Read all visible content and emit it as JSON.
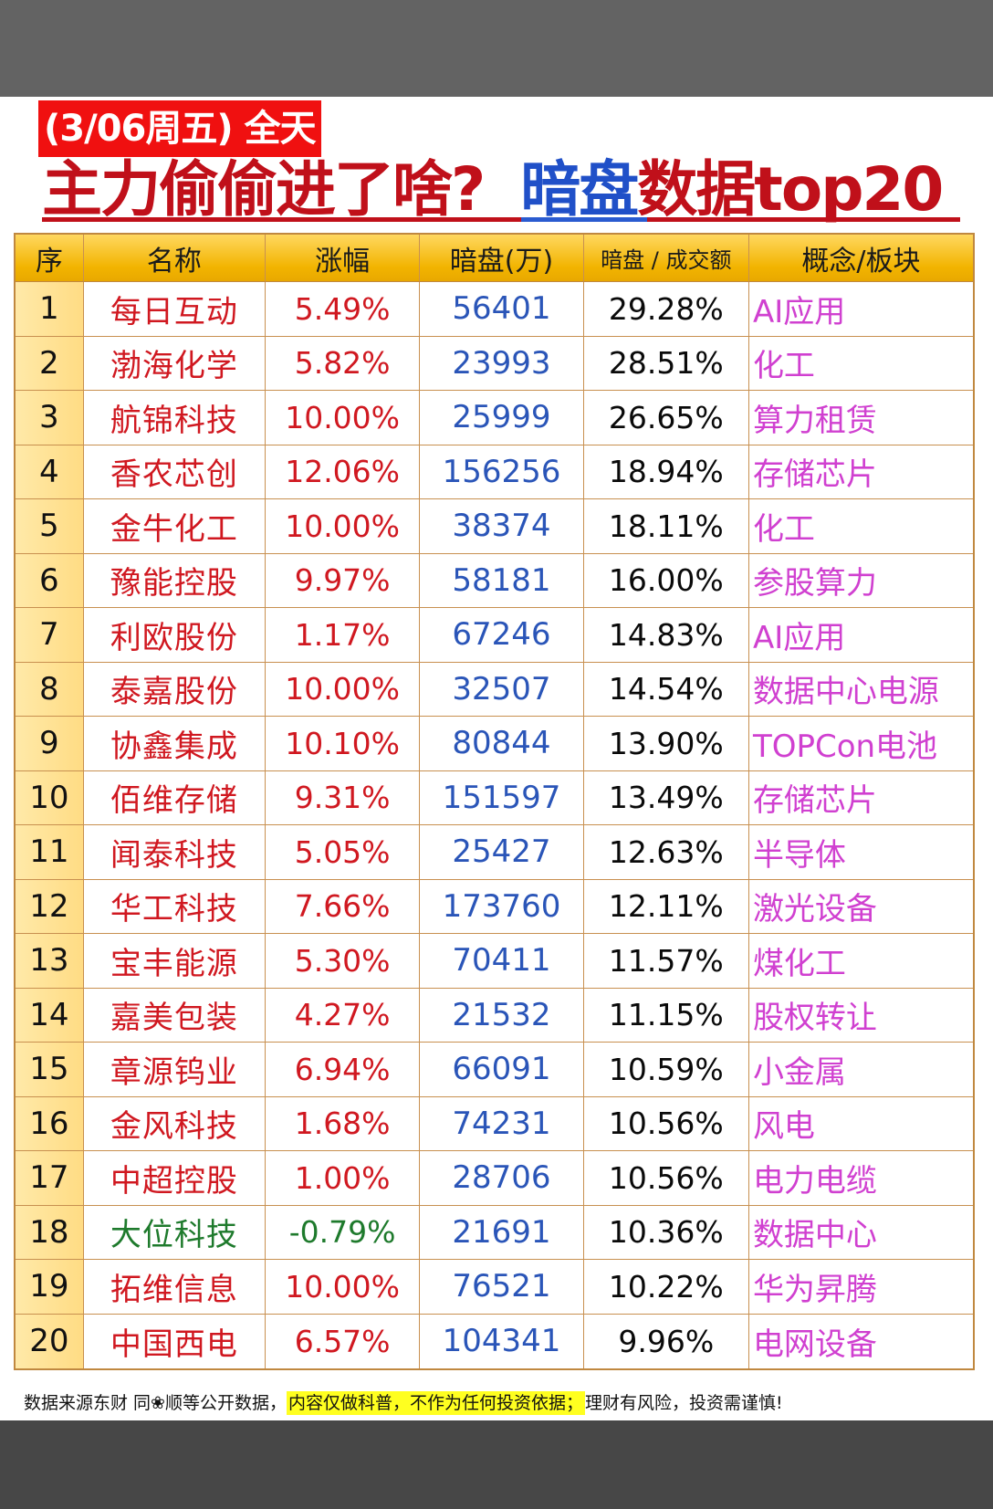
{
  "header": {
    "date_tag": "(3/06周五) 全天",
    "title_part1": "主力偷偷进了啥?",
    "title_part2_blue": "暗盘",
    "title_part3": "数据top20"
  },
  "colors": {
    "date_tag_bg": "#f01010",
    "title_red": "#c0101a",
    "title_blue": "#2050c8",
    "header_gold": "#f2b400",
    "index_col_bg": "#ffe4a0",
    "name_red": "#d01820",
    "name_green": "#1e7a2c",
    "dark_pool_blue": "#2a55b8",
    "concept_magenta": "#d040d0",
    "highlight_yellow": "#ffff20",
    "page_bg_dark": "#4a4a4a"
  },
  "table": {
    "columns": [
      "序",
      "名称",
      "涨幅",
      "暗盘(万)",
      "暗盘 / 成交额",
      "概念/板块"
    ],
    "rows": [
      {
        "idx": "1",
        "name": "每日互动",
        "change": "5.49%",
        "dark": "56401",
        "ratio": "29.28%",
        "concept": "AI应用"
      },
      {
        "idx": "2",
        "name": "渤海化学",
        "change": "5.82%",
        "dark": "23993",
        "ratio": "28.51%",
        "concept": "化工"
      },
      {
        "idx": "3",
        "name": "航锦科技",
        "change": "10.00%",
        "dark": "25999",
        "ratio": "26.65%",
        "concept": "算力租赁"
      },
      {
        "idx": "4",
        "name": "香农芯创",
        "change": "12.06%",
        "dark": "156256",
        "ratio": "18.94%",
        "concept": "存储芯片"
      },
      {
        "idx": "5",
        "name": "金牛化工",
        "change": "10.00%",
        "dark": "38374",
        "ratio": "18.11%",
        "concept": "化工"
      },
      {
        "idx": "6",
        "name": "豫能控股",
        "change": "9.97%",
        "dark": "58181",
        "ratio": "16.00%",
        "concept": "参股算力"
      },
      {
        "idx": "7",
        "name": "利欧股份",
        "change": "1.17%",
        "dark": "67246",
        "ratio": "14.83%",
        "concept": "AI应用"
      },
      {
        "idx": "8",
        "name": "泰嘉股份",
        "change": "10.00%",
        "dark": "32507",
        "ratio": "14.54%",
        "concept": "数据中心电源"
      },
      {
        "idx": "9",
        "name": "协鑫集成",
        "change": "10.10%",
        "dark": "80844",
        "ratio": "13.90%",
        "concept": "TOPCon电池"
      },
      {
        "idx": "10",
        "name": "佰维存储",
        "change": "9.31%",
        "dark": "151597",
        "ratio": "13.49%",
        "concept": "存储芯片"
      },
      {
        "idx": "11",
        "name": "闻泰科技",
        "change": "5.05%",
        "dark": "25427",
        "ratio": "12.63%",
        "concept": "半导体"
      },
      {
        "idx": "12",
        "name": "华工科技",
        "change": "7.66%",
        "dark": "173760",
        "ratio": "12.11%",
        "concept": "激光设备"
      },
      {
        "idx": "13",
        "name": "宝丰能源",
        "change": "5.30%",
        "dark": "70411",
        "ratio": "11.57%",
        "concept": "煤化工"
      },
      {
        "idx": "14",
        "name": "嘉美包装",
        "change": "4.27%",
        "dark": "21532",
        "ratio": "11.15%",
        "concept": "股权转让"
      },
      {
        "idx": "15",
        "name": "章源钨业",
        "change": "6.94%",
        "dark": "66091",
        "ratio": "10.59%",
        "concept": "小金属"
      },
      {
        "idx": "16",
        "name": "金风科技",
        "change": "1.68%",
        "dark": "74231",
        "ratio": "10.56%",
        "concept": "风电"
      },
      {
        "idx": "17",
        "name": "中超控股",
        "change": "1.00%",
        "dark": "28706",
        "ratio": "10.56%",
        "concept": "电力电缆"
      },
      {
        "idx": "18",
        "name": "大位科技",
        "change": "-0.79%",
        "dark": "21691",
        "ratio": "10.36%",
        "concept": "数据中心"
      },
      {
        "idx": "19",
        "name": "拓维信息",
        "change": "10.00%",
        "dark": "76521",
        "ratio": "10.22%",
        "concept": "华为昇腾"
      },
      {
        "idx": "20",
        "name": "中国西电",
        "change": "6.57%",
        "dark": "104341",
        "ratio": "9.96%",
        "concept": "电网设备"
      }
    ]
  },
  "footer": {
    "source": "数据来源东财 同❀顺等公开数据，",
    "disclaimer_highlight": "内容仅做科普，不作为任何投资依据；",
    "risk": "理财有风险，投资需谨慎!"
  }
}
